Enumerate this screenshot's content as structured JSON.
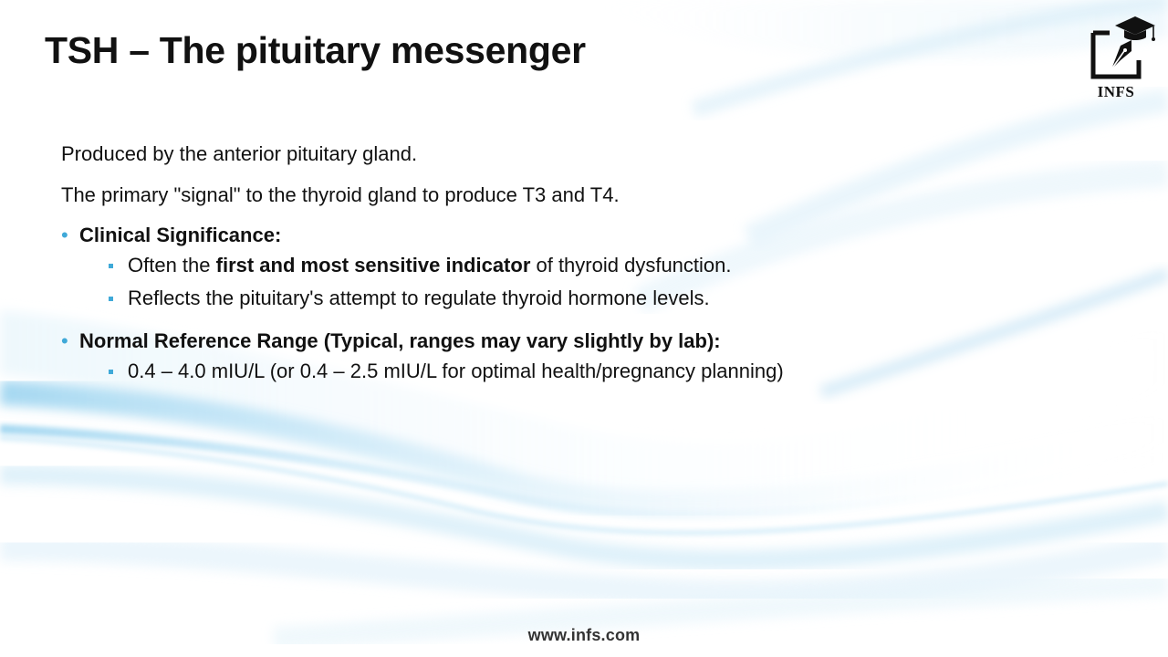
{
  "slide": {
    "title": "TSH – The pituitary messenger",
    "paragraphs": [
      "Produced by the anterior pituitary gland.",
      "The primary \"signal\" to the thyroid gland to produce T3 and T4."
    ],
    "bullets": [
      {
        "label": "Clinical Significance:",
        "subitems": [
          {
            "prefix": "Often the ",
            "bold": "first and most sensitive indicator",
            "suffix": " of thyroid dysfunction."
          },
          {
            "text": "Reflects the pituitary's attempt to regulate thyroid hormone levels."
          }
        ]
      },
      {
        "label": "Normal Reference Range (Typical, ranges may vary slightly by lab):",
        "subitems": [
          {
            "text": "0.4 – 4.0 mIU/L (or 0.4 – 2.5 mIU/L for optimal health/pregnancy planning)"
          }
        ]
      }
    ]
  },
  "logo": {
    "text": "INFS",
    "icon": "graduation-cap-pen-icon"
  },
  "footer": {
    "url": "www.infs.com"
  },
  "colors": {
    "bullet_accent": "#3fa9d8",
    "wave_blue": "#5bb8e6",
    "text": "#111111"
  }
}
